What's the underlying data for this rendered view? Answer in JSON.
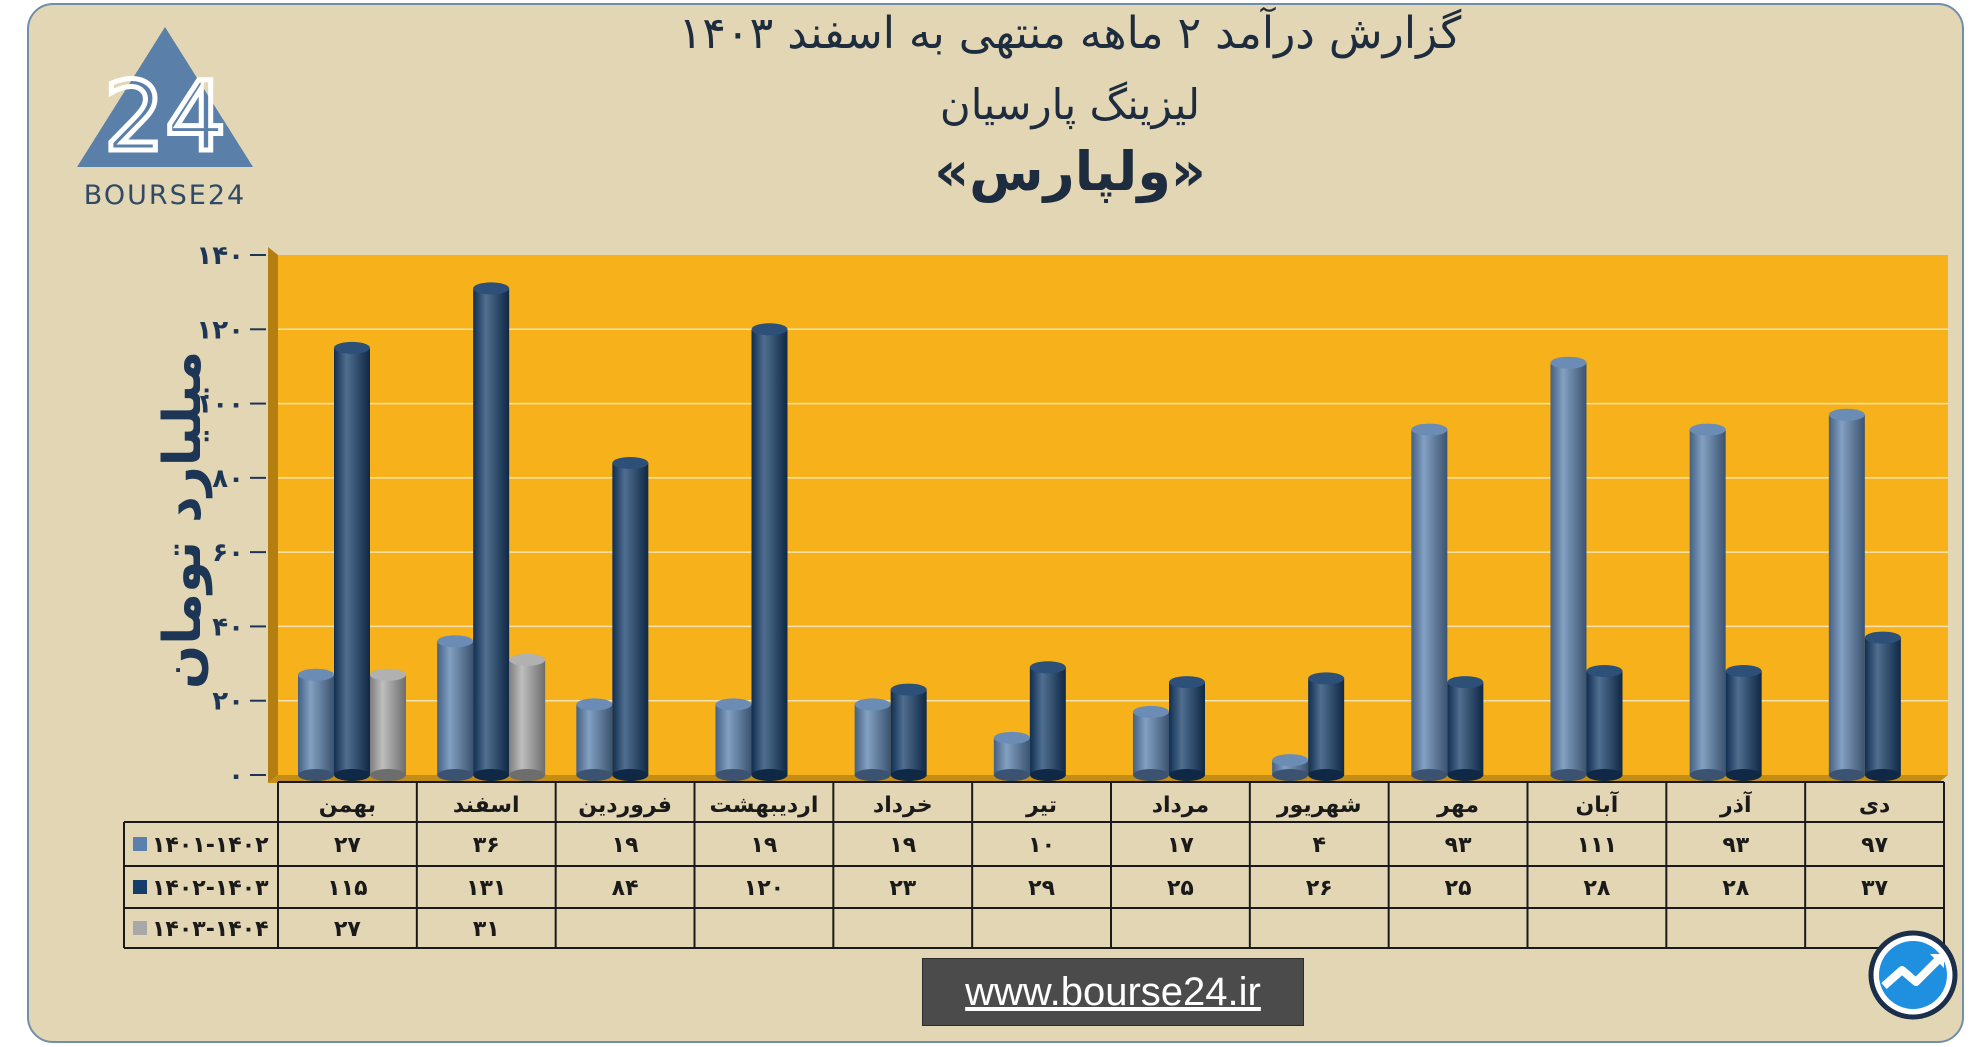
{
  "header": {
    "title_line1": "گزارش  درآمد ۲ ماهه منتهی به اسفند ۱۴۰۳",
    "title_line2": "لیزینگ پارسیان",
    "title_line3": "«ولپارس»"
  },
  "logo": {
    "brand": "BOURSE24",
    "mark": "24",
    "icon": "bourse24-triangle-logo"
  },
  "footer": {
    "url": "www.bourse24.ir",
    "corner_icon": "trend-arrow-icon"
  },
  "colors": {
    "background": "#e3d6b4",
    "plot_bg": "#f7b21b",
    "series1": "#5a80ad",
    "series2": "#163d6a",
    "series3": "#a8a8a8"
  },
  "chart_data": {
    "type": "bar",
    "title": "گزارش  درآمد ۲ ماهه منتهی به اسفند ۱۴۰۳",
    "ylabel": "میلیارد تومان",
    "ylim": [
      0,
      140
    ],
    "yticks": [
      "۰",
      "۲۰",
      "۴۰",
      "۶۰",
      "۸۰",
      "۱۰۰",
      "۱۲۰",
      "۱۴۰"
    ],
    "grid": true,
    "categories": [
      "بهمن",
      "اسفند",
      "فروردین",
      "اردیبهشت",
      "خرداد",
      "تیر",
      "مرداد",
      "شهریور",
      "مهر",
      "آبان",
      "آذر",
      "دی"
    ],
    "series": [
      {
        "name": "۱۴۰۱-۱۴۰۲",
        "values": [
          27,
          36,
          19,
          19,
          19,
          10,
          17,
          4,
          93,
          111,
          93,
          97
        ],
        "labels": [
          "۲۷",
          "۳۶",
          "۱۹",
          "۱۹",
          "۱۹",
          "۱۰",
          "۱۷",
          "۴",
          "۹۳",
          "۱۱۱",
          "۹۳",
          "۹۷"
        ]
      },
      {
        "name": "۱۴۰۲-۱۴۰۳",
        "values": [
          115,
          131,
          84,
          120,
          23,
          29,
          25,
          26,
          25,
          28,
          28,
          37
        ],
        "labels": [
          "۱۱۵",
          "۱۳۱",
          "۸۴",
          "۱۲۰",
          "۲۳",
          "۲۹",
          "۲۵",
          "۲۶",
          "۲۵",
          "۲۸",
          "۲۸",
          "۳۷"
        ]
      },
      {
        "name": "۱۴۰۳-۱۴۰۴",
        "values": [
          27,
          31,
          null,
          null,
          null,
          null,
          null,
          null,
          null,
          null,
          null,
          null
        ],
        "labels": [
          "۲۷",
          "۳۱",
          "",
          "",
          "",
          "",
          "",
          "",
          "",
          "",
          "",
          ""
        ]
      }
    ]
  }
}
